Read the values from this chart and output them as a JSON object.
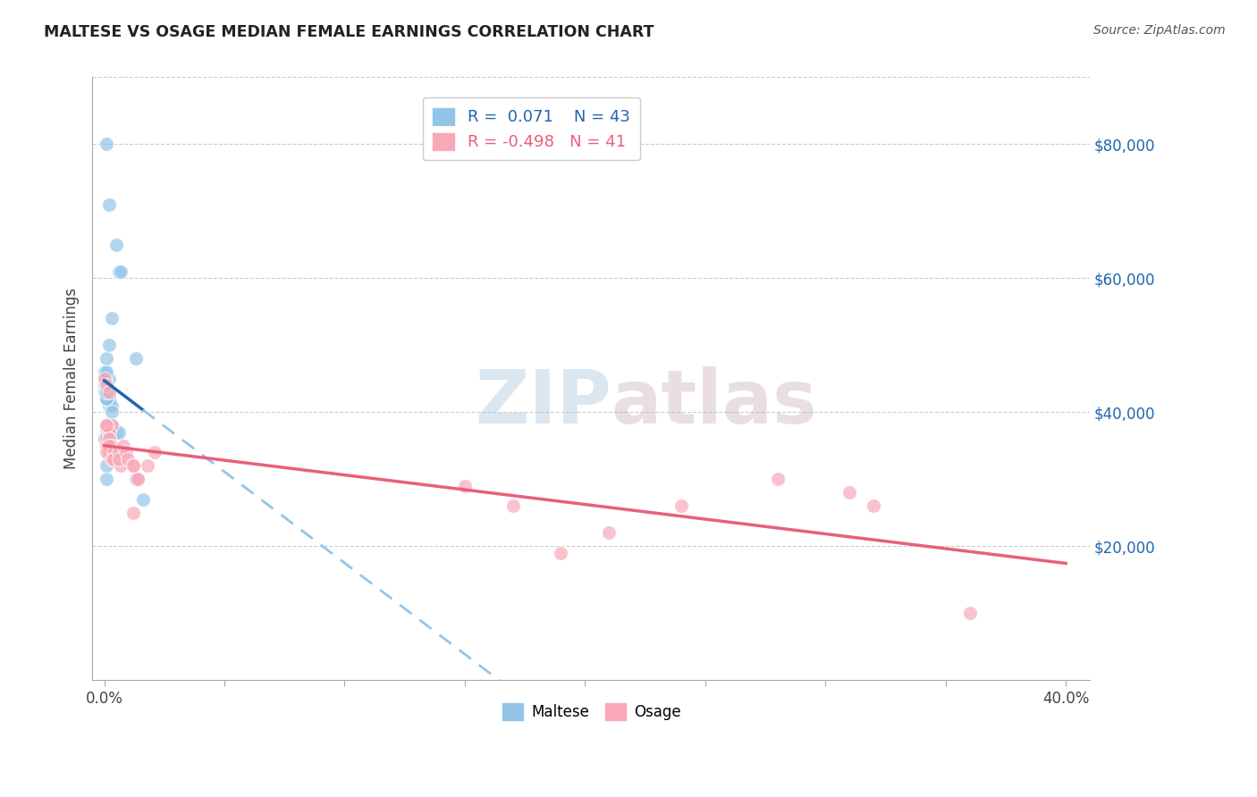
{
  "title": "MALTESE VS OSAGE MEDIAN FEMALE EARNINGS CORRELATION CHART",
  "source": "Source: ZipAtlas.com",
  "ylabel": "Median Female Earnings",
  "right_ytick_labels": [
    "$80,000",
    "$60,000",
    "$40,000",
    "$20,000"
  ],
  "right_ytick_values": [
    80000,
    60000,
    40000,
    20000
  ],
  "maltese_color": "#93c5e8",
  "osage_color": "#f9a8b8",
  "maltese_line_solid_color": "#2166ac",
  "osage_line_color": "#e8607a",
  "maltese_dashed_color": "#93c5e8",
  "background_color": "#ffffff",
  "watermark_zip": "ZIP",
  "watermark_atlas": "atlas",
  "maltese_x": [
    0.2,
    0.1,
    0.5,
    0.0,
    0.0,
    0.1,
    0.1,
    0.0,
    0.1,
    0.2,
    0.1,
    0.1,
    0.0,
    0.1,
    0.2,
    0.1,
    0.1,
    0.2,
    0.3,
    0.1,
    0.3,
    0.3,
    0.1,
    0.2,
    0.1,
    0.0,
    0.0,
    0.2,
    0.1,
    0.1,
    0.6,
    0.7,
    0.3,
    0.1,
    0.2,
    0.1,
    1.3,
    1.6,
    0.2,
    1.3,
    0.5,
    0.6,
    0.1
  ],
  "maltese_y": [
    45000,
    80000,
    65000,
    45000,
    46000,
    46000,
    44000,
    44000,
    44000,
    43000,
    43000,
    43000,
    43000,
    43000,
    42000,
    42000,
    42000,
    41000,
    41000,
    42000,
    40000,
    38000,
    38000,
    37000,
    37000,
    36000,
    36000,
    34000,
    30000,
    32000,
    61000,
    61000,
    54000,
    48000,
    50000,
    42000,
    30000,
    27000,
    71000,
    48000,
    37000,
    37000,
    43000
  ],
  "osage_x": [
    0.0,
    0.1,
    0.1,
    0.3,
    0.2,
    0.1,
    0.2,
    0.1,
    0.2,
    0.1,
    0.2,
    0.2,
    0.3,
    0.2,
    0.1,
    0.4,
    0.4,
    0.3,
    0.4,
    0.6,
    0.7,
    0.8,
    0.6,
    0.9,
    1.0,
    1.2,
    1.4,
    1.4,
    1.2,
    1.2,
    1.8,
    2.1,
    19.0,
    24.0,
    28.0,
    17.0,
    15.0,
    32.0,
    31.0,
    21.0,
    36.0
  ],
  "osage_y": [
    45000,
    44000,
    36000,
    38000,
    43000,
    38000,
    37000,
    38000,
    36000,
    35000,
    34000,
    36000,
    35000,
    35000,
    34000,
    34000,
    33000,
    33000,
    33000,
    34000,
    32000,
    35000,
    33000,
    34000,
    33000,
    32000,
    30000,
    30000,
    32000,
    25000,
    32000,
    34000,
    19000,
    26000,
    30000,
    26000,
    29000,
    26000,
    28000,
    22000,
    10000
  ],
  "xlim": [
    -0.5,
    41.0
  ],
  "ylim": [
    0,
    90000
  ],
  "xtick_positions": [
    0,
    5,
    10,
    15,
    20,
    25,
    30,
    35,
    40
  ],
  "solid_line_end_x": 1.6,
  "dashed_line_start_x": 1.6
}
